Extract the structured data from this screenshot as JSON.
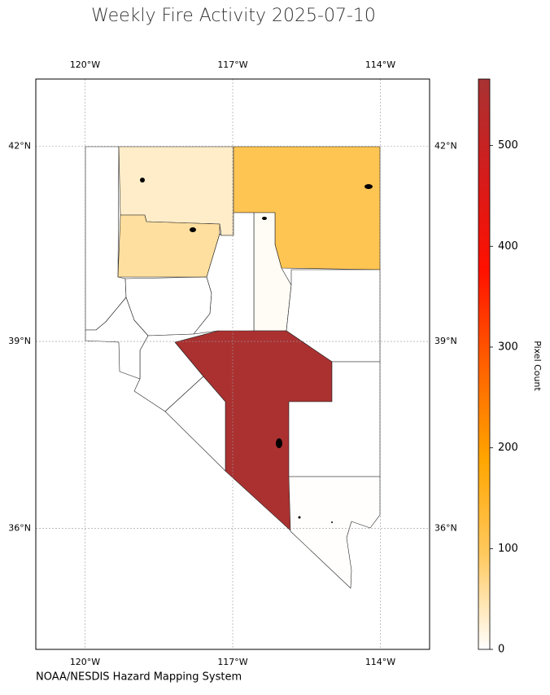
{
  "chart_data": {
    "type": "choropleth",
    "title": "Weekly Fire Activity 2025-07-10",
    "source": "NOAA/NESDIS Hazard Mapping System",
    "xlim": [
      -121,
      -113
    ],
    "ylim": [
      34,
      43
    ],
    "xticks": [
      {
        "value": -120,
        "label": "120°W"
      },
      {
        "value": -117,
        "label": "117°W"
      },
      {
        "value": -114,
        "label": "114°W"
      }
    ],
    "yticks": [
      {
        "value": 36,
        "label": "36°N"
      },
      {
        "value": 39,
        "label": "39°N"
      },
      {
        "value": 42,
        "label": "42°N"
      }
    ],
    "grid": true,
    "colorbar": {
      "label": "Pixel Count",
      "lim": [
        0,
        566
      ],
      "ticks": [
        0,
        100,
        200,
        300,
        400,
        500
      ],
      "colors": [
        "#ffffff",
        "#ffc95e",
        "#ffa500",
        "#ff6000",
        "#ff1000",
        "#d41c1c",
        "#a83232"
      ]
    },
    "values": [
      0,
      31,
      56,
      105,
      6,
      0,
      0,
      0,
      560,
      0,
      0,
      0,
      2,
      0
    ]
  }
}
